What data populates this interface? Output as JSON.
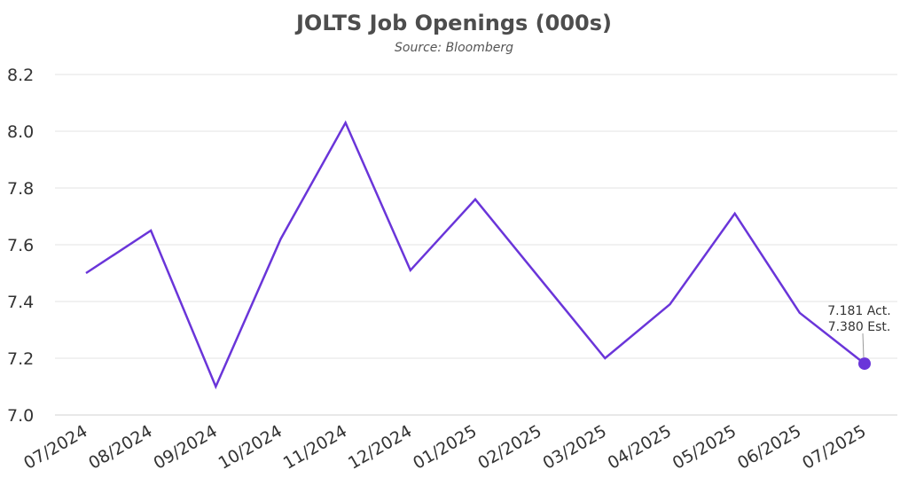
{
  "chart_data": {
    "type": "line",
    "title": "JOLTS Job Openings (000s)",
    "subtitle": "Source: Bloomberg",
    "categories": [
      "07/2024",
      "08/2024",
      "09/2024",
      "10/2024",
      "11/2024",
      "12/2024",
      "01/2025",
      "02/2025",
      "03/2025",
      "04/2025",
      "05/2025",
      "06/2025",
      "07/2025"
    ],
    "series": [
      {
        "values": [
          7.5,
          7.65,
          7.1,
          7.62,
          8.03,
          7.51,
          7.76,
          7.48,
          7.2,
          7.39,
          7.71,
          7.36,
          7.181
        ]
      }
    ],
    "ylim": [
      7.0,
      8.2
    ],
    "yticks": [
      "7.0",
      "7.2",
      "7.4",
      "7.6",
      "7.8",
      "8.0",
      "8.2"
    ],
    "grid": true,
    "legend": "none",
    "line_color": "#6a35d9",
    "marker_color": "#6a35d9",
    "annotation": {
      "line1": "7.181 Act.",
      "line2": "7.380 Est."
    }
  }
}
